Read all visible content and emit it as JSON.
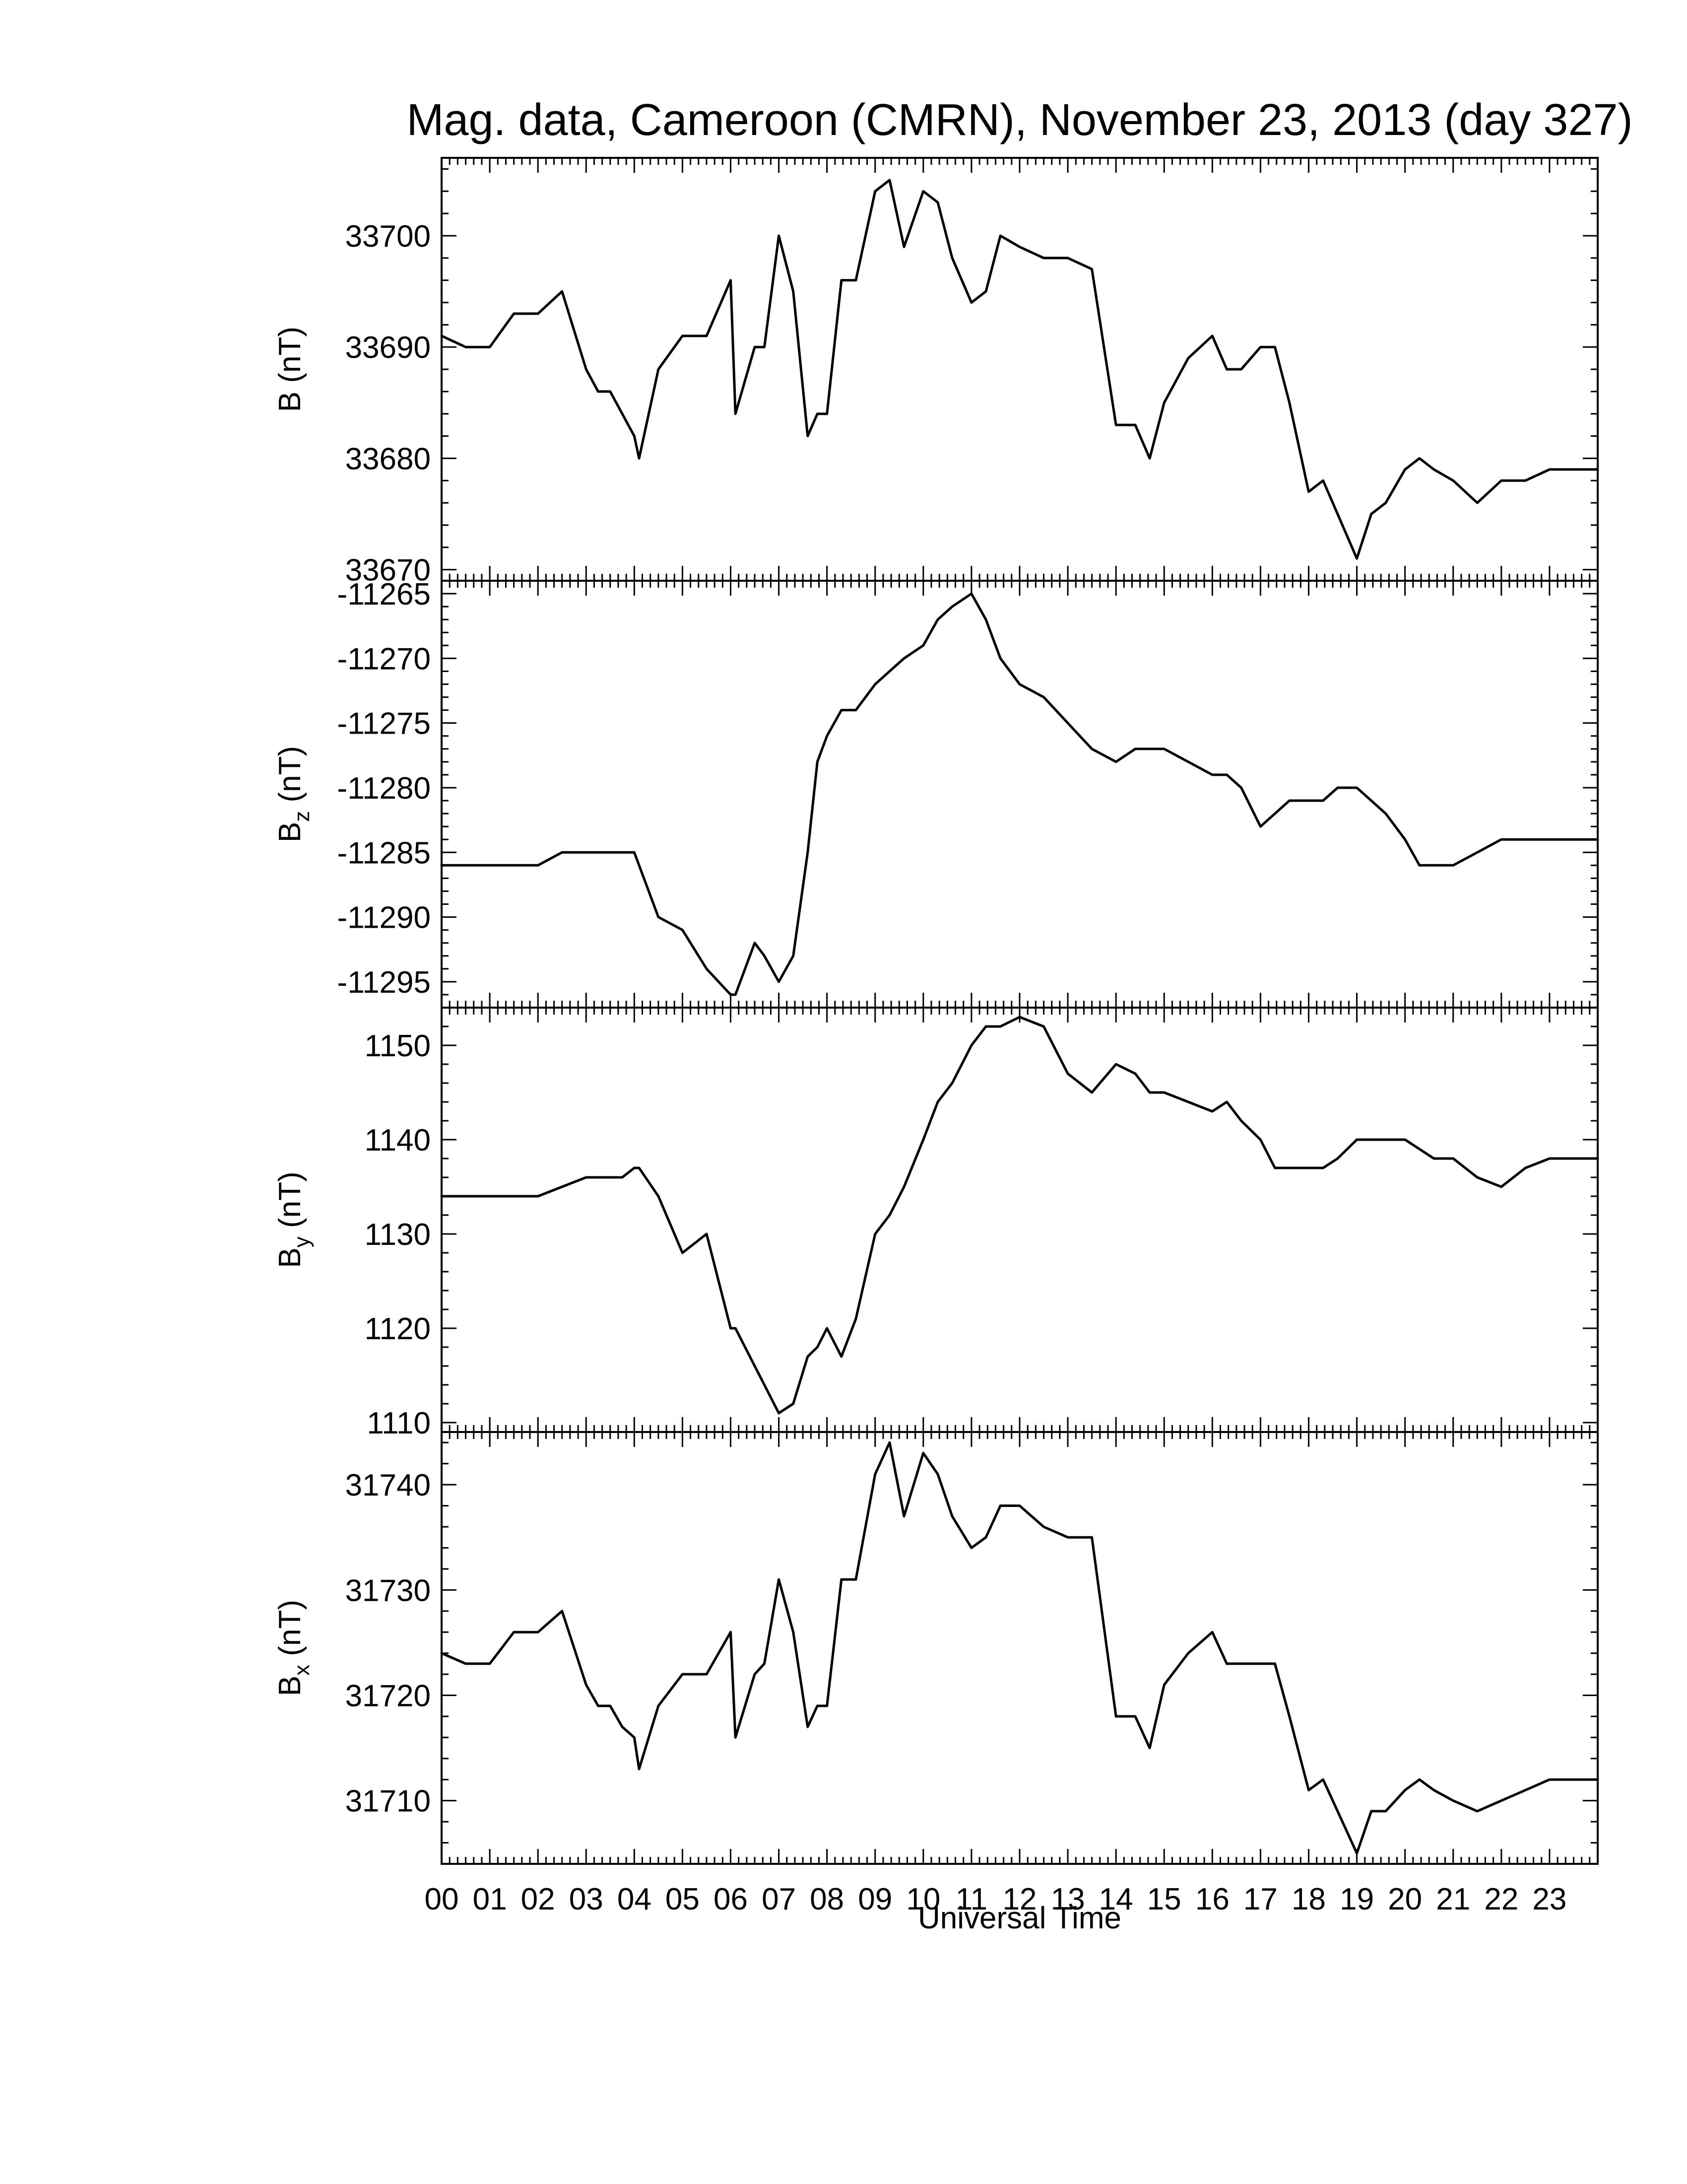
{
  "chart_data": {
    "type": "line",
    "title": "Mag. data, Cameroon (CMRN), November 23, 2013 (day 327)",
    "xlabel": "Universal Time",
    "x_unit": "hour (UT)",
    "xlim": [
      0,
      24
    ],
    "x_tick_labels": [
      "00",
      "01",
      "02",
      "03",
      "04",
      "05",
      "06",
      "07",
      "08",
      "09",
      "10",
      "11",
      "12",
      "13",
      "14",
      "15",
      "16",
      "17",
      "18",
      "19",
      "20",
      "21",
      "22",
      "23"
    ],
    "hours": [
      0,
      0.5,
      1,
      1.5,
      2,
      2.5,
      3,
      3.25,
      3.5,
      3.75,
      4,
      4.1,
      4.5,
      5,
      5.5,
      6,
      6.1,
      6.5,
      6.7,
      7,
      7.3,
      7.6,
      7.8,
      8,
      8.3,
      8.6,
      9,
      9.3,
      9.6,
      10,
      10.3,
      10.6,
      11,
      11.3,
      11.6,
      12,
      12.5,
      13,
      13.5,
      14,
      14.4,
      14.7,
      15,
      15.5,
      16,
      16.3,
      16.6,
      17,
      17.3,
      17.6,
      18,
      18.3,
      18.6,
      19,
      19.3,
      19.6,
      20,
      20.3,
      20.6,
      21,
      21.5,
      22,
      22.5,
      23,
      23.5,
      24
    ],
    "panels": [
      {
        "name": "B",
        "ylabel": "B (nT)",
        "ylim": [
          33669,
          33707
        ],
        "yticks": [
          33670,
          33680,
          33690,
          33700
        ],
        "values": [
          33691,
          33690,
          33690,
          33693,
          33693,
          33695,
          33688,
          33686,
          33686,
          33684,
          33682,
          33680,
          33688,
          33691,
          33691,
          33696,
          33684,
          33690,
          33690,
          33700,
          33695,
          33682,
          33684,
          33684,
          33696,
          33696,
          33704,
          33705,
          33699,
          33704,
          33703,
          33698,
          33694,
          33695,
          33700,
          33699,
          33698,
          33698,
          33697,
          33683,
          33683,
          33680,
          33685,
          33689,
          33691,
          33688,
          33688,
          33690,
          33690,
          33685,
          33677,
          33678,
          33675,
          33671,
          33675,
          33676,
          33679,
          33680,
          33679,
          33678,
          33676,
          33678,
          33678,
          33679,
          33679,
          33679
        ]
      },
      {
        "name": "Bz",
        "ylabel": "B_z (nT)",
        "ylim": [
          -11297,
          -11264
        ],
        "yticks": [
          -11295,
          -11290,
          -11285,
          -11280,
          -11275,
          -11270,
          -11265
        ],
        "values": [
          -11286,
          -11286,
          -11286,
          -11286,
          -11286,
          -11285,
          -11285,
          -11285,
          -11285,
          -11285,
          -11285,
          -11286,
          -11290,
          -11291,
          -11294,
          -11296,
          -11296,
          -11292,
          -11293,
          -11295,
          -11293,
          -11285,
          -11278,
          -11276,
          -11274,
          -11274,
          -11272,
          -11271,
          -11270,
          -11269,
          -11267,
          -11266,
          -11265,
          -11267,
          -11270,
          -11272,
          -11273,
          -11275,
          -11277,
          -11278,
          -11277,
          -11277,
          -11277,
          -11278,
          -11279,
          -11279,
          -11280,
          -11283,
          -11282,
          -11281,
          -11281,
          -11281,
          -11280,
          -11280,
          -11281,
          -11282,
          -11284,
          -11286,
          -11286,
          -11286,
          -11285,
          -11284,
          -11284,
          -11284,
          -11284,
          -11284
        ]
      },
      {
        "name": "By",
        "ylabel": "B_y (nT)",
        "ylim": [
          1109,
          1154
        ],
        "yticks": [
          1110,
          1120,
          1130,
          1140,
          1150
        ],
        "values": [
          1134,
          1134,
          1134,
          1134,
          1134,
          1135,
          1136,
          1136,
          1136,
          1136,
          1137,
          1137,
          1134,
          1128,
          1130,
          1120,
          1120,
          1116,
          1114,
          1111,
          1112,
          1117,
          1118,
          1120,
          1117,
          1121,
          1130,
          1132,
          1135,
          1140,
          1144,
          1146,
          1150,
          1152,
          1152,
          1153,
          1152,
          1147,
          1145,
          1148,
          1147,
          1145,
          1145,
          1144,
          1143,
          1144,
          1142,
          1140,
          1137,
          1137,
          1137,
          1137,
          1138,
          1140,
          1140,
          1140,
          1140,
          1139,
          1138,
          1138,
          1136,
          1135,
          1137,
          1138,
          1138,
          1138
        ]
      },
      {
        "name": "Bx",
        "ylabel": "B_x (nT)",
        "ylim": [
          31704,
          31745
        ],
        "yticks": [
          31710,
          31720,
          31730,
          31740
        ],
        "values": [
          31724,
          31723,
          31723,
          31726,
          31726,
          31728,
          31721,
          31719,
          31719,
          31717,
          31716,
          31713,
          31719,
          31722,
          31722,
          31726,
          31716,
          31722,
          31723,
          31731,
          31726,
          31717,
          31719,
          31719,
          31731,
          31731,
          31741,
          31744,
          31737,
          31743,
          31741,
          31737,
          31734,
          31735,
          31738,
          31738,
          31736,
          31735,
          31735,
          31718,
          31718,
          31715,
          31721,
          31724,
          31726,
          31723,
          31723,
          31723,
          31723,
          31718,
          31711,
          31712,
          31709,
          31705,
          31709,
          31709,
          31711,
          31712,
          31711,
          31710,
          31709,
          31710,
          31711,
          31712,
          31712,
          31712
        ]
      }
    ]
  }
}
